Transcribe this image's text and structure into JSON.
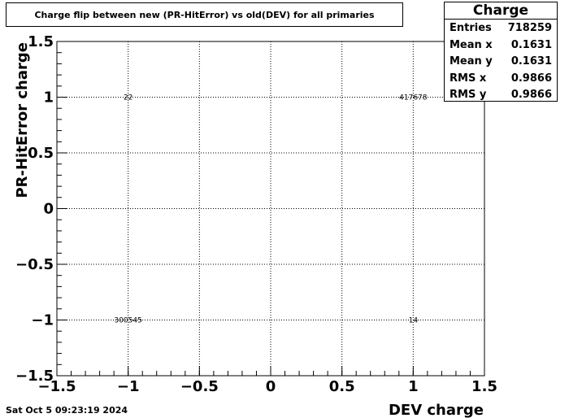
{
  "chart_data": {
    "type": "heatmap",
    "title": "Charge flip between new (PR-HitError) vs old(DEV) for all primaries",
    "xlabel": "DEV charge",
    "ylabel": "PR-HitError charge",
    "xlim": [
      -1.5,
      1.5
    ],
    "ylim": [
      -1.5,
      1.5
    ],
    "x_ticks": [
      "−1.5",
      "−1",
      "−0.5",
      "0",
      "0.5",
      "1",
      "1.5"
    ],
    "y_ticks": [
      "−1.5",
      "−1",
      "−0.5",
      "0",
      "0.5",
      "1",
      "1.5"
    ],
    "grid": true,
    "cells": [
      {
        "x": -1,
        "y": 1,
        "label": "22"
      },
      {
        "x": 1,
        "y": 1,
        "label": "417678"
      },
      {
        "x": -1,
        "y": -1,
        "label": "300545"
      },
      {
        "x": 1,
        "y": -1,
        "label": "14"
      }
    ]
  },
  "stats": {
    "title": "Charge",
    "rows": [
      {
        "label": "Entries",
        "value": "718259"
      },
      {
        "label": "Mean x",
        "value": "0.1631"
      },
      {
        "label": "Mean y",
        "value": "0.1631"
      },
      {
        "label": "RMS x",
        "value": "0.9866"
      },
      {
        "label": "RMS y",
        "value": "0.9866"
      }
    ]
  },
  "footer": {
    "timestamp": "Sat Oct  5 09:23:19 2024"
  }
}
